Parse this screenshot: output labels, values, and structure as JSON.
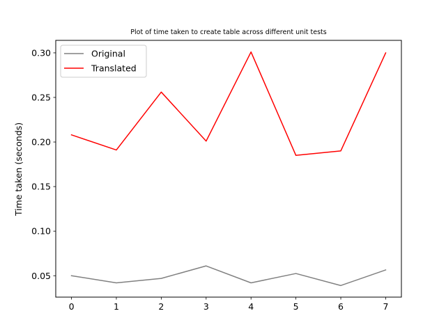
{
  "chart_data": {
    "type": "line",
    "title": "Plot of time taken to create table across different unit tests",
    "xlabel": "",
    "ylabel": "Time taken (seconds)",
    "x": [
      0,
      1,
      2,
      3,
      4,
      5,
      6,
      7
    ],
    "xlim": [
      -0.35,
      7.35
    ],
    "ylim": [
      0.026,
      0.314
    ],
    "yticks": [
      0.05,
      0.1,
      0.15,
      0.2,
      0.25,
      0.3
    ],
    "ytick_labels": [
      "0.05",
      "0.10",
      "0.15",
      "0.20",
      "0.25",
      "0.30"
    ],
    "xtick_labels": [
      "0",
      "1",
      "2",
      "3",
      "4",
      "5",
      "6",
      "7"
    ],
    "grid": false,
    "legend_position": "top-left",
    "series": [
      {
        "name": "Original",
        "color": "#808080",
        "values": [
          0.05,
          0.042,
          0.047,
          0.061,
          0.042,
          0.0525,
          0.039,
          0.0565
        ]
      },
      {
        "name": "Translated",
        "color": "#ff0000",
        "values": [
          0.208,
          0.191,
          0.256,
          0.201,
          0.301,
          0.185,
          0.19,
          0.3
        ]
      }
    ]
  }
}
